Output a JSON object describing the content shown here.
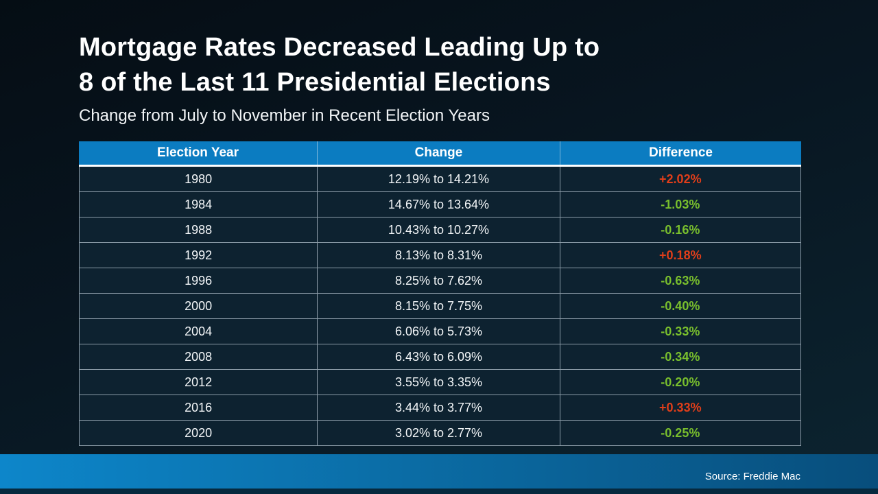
{
  "slide": {
    "title_line1": "Mortgage Rates Decreased Leading Up to",
    "title_line2": "8 of the Last 11 Presidential Elections",
    "subtitle": "Change from July to November in Recent Election Years",
    "source": "Source: Freddie Mac"
  },
  "colors": {
    "header_bg": "#0b7cc1",
    "increase": "#e03e1a",
    "decrease": "#79bf2d",
    "footer_bar": "#0b7cc1"
  },
  "table": {
    "headers": {
      "year": "Election Year",
      "change": "Change",
      "difference": "Difference"
    },
    "rows": [
      {
        "year": "1980",
        "change": "12.19% to 14.21%",
        "difference": "+2.02%",
        "diff_color": "#e03e1a"
      },
      {
        "year": "1984",
        "change": "14.67% to 13.64%",
        "difference": "-1.03%",
        "diff_color": "#79bf2d"
      },
      {
        "year": "1988",
        "change": "10.43% to 10.27%",
        "difference": "-0.16%",
        "diff_color": "#79bf2d"
      },
      {
        "year": "1992",
        "change": "8.13% to 8.31%",
        "difference": "+0.18%",
        "diff_color": "#e03e1a"
      },
      {
        "year": "1996",
        "change": "8.25% to 7.62%",
        "difference": "-0.63%",
        "diff_color": "#79bf2d"
      },
      {
        "year": "2000",
        "change": "8.15% to 7.75%",
        "difference": "-0.40%",
        "diff_color": "#79bf2d"
      },
      {
        "year": "2004",
        "change": "6.06% to 5.73%",
        "difference": "-0.33%",
        "diff_color": "#79bf2d"
      },
      {
        "year": "2008",
        "change": "6.43% to 6.09%",
        "difference": "-0.34%",
        "diff_color": "#79bf2d"
      },
      {
        "year": "2012",
        "change": "3.55% to 3.35%",
        "difference": "-0.20%",
        "diff_color": "#79bf2d"
      },
      {
        "year": "2016",
        "change": "3.44% to 3.77%",
        "difference": "+0.33%",
        "diff_color": "#e03e1a"
      },
      {
        "year": "2020",
        "change": "3.02% to 2.77%",
        "difference": "-0.25%",
        "diff_color": "#79bf2d"
      }
    ]
  },
  "chart_data": {
    "type": "table",
    "title": "Mortgage Rates Decreased Leading Up to 8 of the Last 11 Presidential Elections",
    "subtitle": "Change from July to November in Recent Election Years",
    "columns": [
      "Election Year",
      "Change",
      "Difference"
    ],
    "rows": [
      [
        "1980",
        "12.19% to 14.21%",
        "+2.02%"
      ],
      [
        "1984",
        "14.67% to 13.64%",
        "-1.03%"
      ],
      [
        "1988",
        "10.43% to 10.27%",
        "-0.16%"
      ],
      [
        "1992",
        "8.13% to 8.31%",
        "+0.18%"
      ],
      [
        "1996",
        "8.25% to 7.62%",
        "-0.63%"
      ],
      [
        "2000",
        "8.15% to 7.75%",
        "-0.40%"
      ],
      [
        "2004",
        "6.06% to 5.73%",
        "-0.33%"
      ],
      [
        "2008",
        "6.43% to 6.09%",
        "-0.34%"
      ],
      [
        "2012",
        "3.55% to 3.35%",
        "-0.20%"
      ],
      [
        "2016",
        "3.44% to 3.77%",
        "+0.33%"
      ],
      [
        "2020",
        "3.02% to 2.77%",
        "-0.25%"
      ]
    ],
    "source": "Source: Freddie Mac",
    "notes": "Difference values rendered red when rates increased, green when rates decreased"
  }
}
